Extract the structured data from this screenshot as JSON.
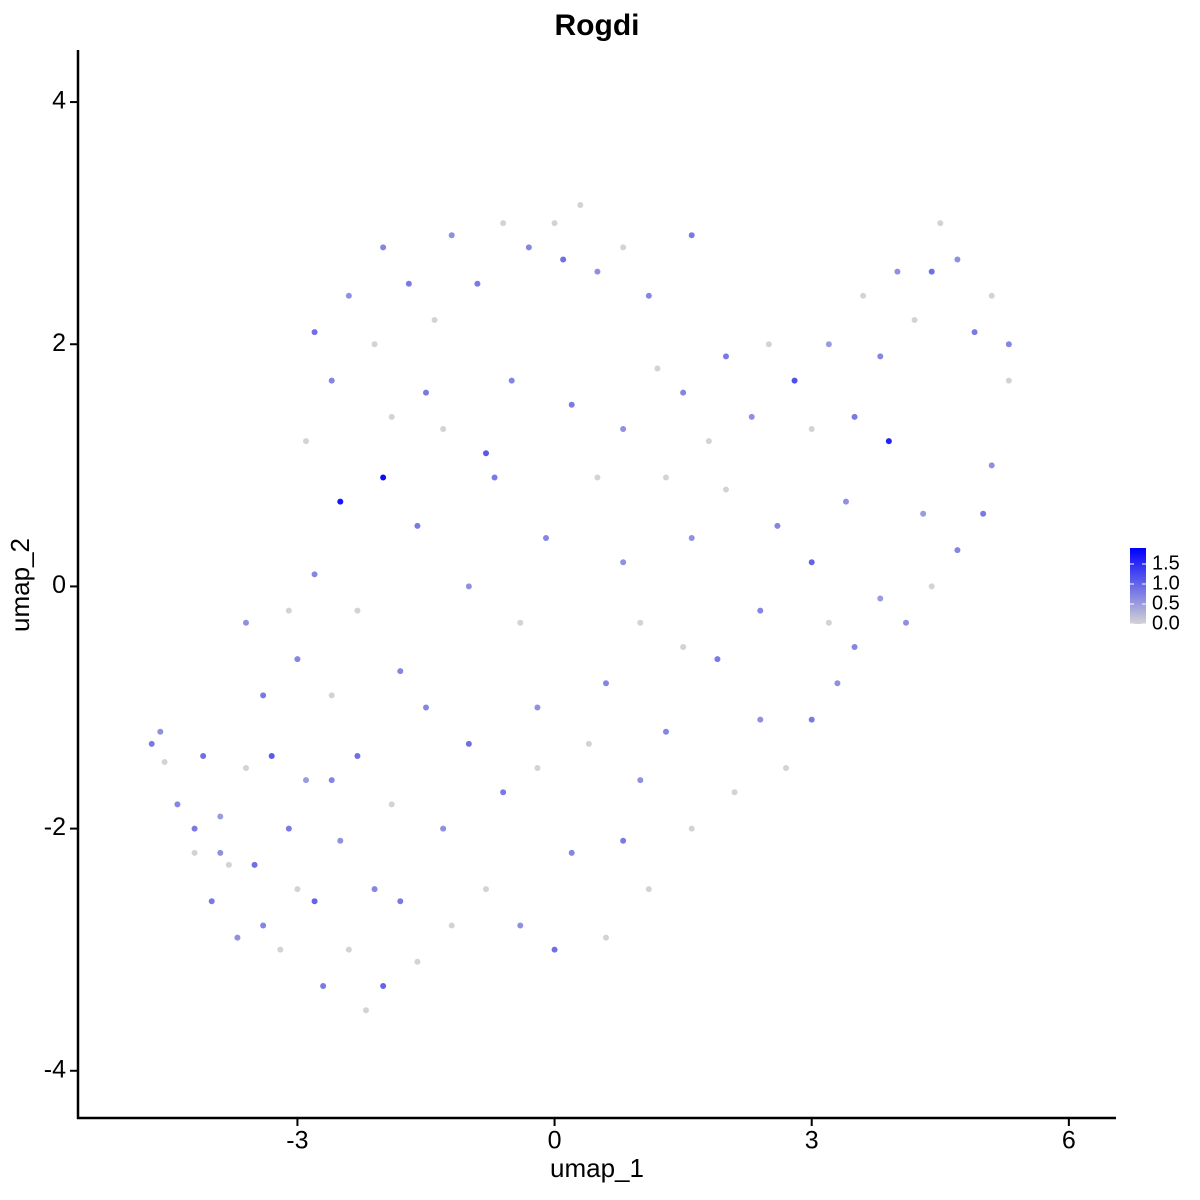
{
  "chart_data": {
    "type": "scatter",
    "title": "Rogdi",
    "x_label": "umap_1",
    "y_label": "umap_2",
    "xlim": [
      -5.56,
      6.55
    ],
    "ylim": [
      -4.39,
      4.43
    ],
    "xticks": [
      -3,
      0,
      3,
      6
    ],
    "yticks": [
      -4,
      -2,
      0,
      2,
      4
    ],
    "colors": [
      "#d3d3d3",
      "#0000ff"
    ],
    "color_range": [
      0,
      1.9
    ],
    "colorbar_ticks": [
      {
        "value": 0,
        "label": "0.0"
      },
      0.5,
      {
        "value": 1,
        "label": "1.0"
      },
      1.5
    ],
    "x": [
      -4.7,
      -4.6,
      -4.55,
      -4.4,
      -4.2,
      -4.1,
      -4.0,
      -3.9,
      -3.8,
      -3.7,
      -3.6,
      -3.5,
      -3.4,
      -3.3,
      -3.2,
      -3.1,
      -3.0,
      -2.9,
      -2.8,
      -2.7,
      -2.6,
      -2.5,
      -2.4,
      -2.3,
      -2.2,
      -2.1,
      -2.0,
      -1.9,
      -1.8,
      -1.6,
      -1.5,
      -1.3,
      -1.2,
      -1.0,
      -0.8,
      -0.6,
      -0.4,
      -0.2,
      0.0,
      0.2,
      0.4,
      0.6,
      0.8,
      1.0,
      1.1,
      1.3,
      1.6,
      1.9,
      2.1,
      2.4,
      2.7,
      3.0,
      3.3,
      3.5,
      3.8,
      4.1,
      4.4,
      4.7,
      5.0,
      5.1,
      5.3,
      5.3,
      5.1,
      4.9,
      4.7,
      4.5,
      4.4,
      4.2,
      4.0,
      3.8,
      3.6,
      3.5,
      3.2,
      3.0,
      2.8,
      2.5,
      2.3,
      2.0,
      1.8,
      1.5,
      1.3,
      1.6,
      2.0,
      2.6,
      3.0,
      3.4,
      3.9,
      4.3,
      3.2,
      2.4,
      1.5,
      0.8,
      0.5,
      0.2,
      -0.1,
      -0.4,
      -0.7,
      -1.0,
      -1.3,
      -1.6,
      -2.0,
      -2.3,
      -2.5,
      -2.8,
      -3.1,
      -3.4,
      -3.6,
      -2.9,
      -2.6,
      -2.8,
      -2.4,
      -2.1,
      -2.0,
      -1.7,
      -1.4,
      -1.2,
      -0.9,
      -0.6,
      -0.3,
      0.0,
      0.1,
      0.3,
      0.5,
      0.8,
      1.1,
      1.6,
      1.2,
      0.8,
      -0.5,
      -0.8,
      -1.5,
      -1.9,
      -0.2,
      0.6,
      1.0,
      -1.8,
      -3.9,
      -4.2,
      -3.0,
      -2.6
    ],
    "values": [
      -1.3,
      -1.2,
      -1.45,
      -1.8,
      -2.2,
      -1.4,
      -2.6,
      -1.9,
      -2.3,
      -2.9,
      -1.5,
      -2.3,
      -2.8,
      -1.4,
      -3.0,
      -2.0,
      -0.6,
      -1.6,
      -2.6,
      -3.3,
      -0.9,
      -2.1,
      -3.0,
      -1.4,
      -3.5,
      -2.5,
      -3.3,
      -1.8,
      -2.6,
      -3.1,
      -1.0,
      -2.0,
      -2.8,
      -1.3,
      -2.5,
      -1.7,
      -2.8,
      -1.5,
      -3.0,
      -2.2,
      -1.3,
      -2.9,
      -2.1,
      -1.6,
      -2.5,
      -1.2,
      -2.0,
      -0.6,
      -1.7,
      -1.1,
      -1.5,
      -1.1,
      -0.8,
      -0.5,
      -0.1,
      -0.3,
      0.0,
      0.3,
      0.6,
      1.0,
      1.7,
      2.0,
      2.4,
      2.1,
      2.7,
      3.0,
      2.6,
      2.2,
      2.6,
      1.9,
      2.4,
      1.4,
      2.0,
      1.3,
      1.7,
      2.0,
      1.4,
      1.9,
      1.2,
      1.6,
      0.9,
      0.4,
      0.8,
      0.5,
      0.2,
      0.7,
      1.2,
      0.6,
      -0.3,
      -0.2,
      -0.5,
      0.2,
      0.9,
      1.5,
      0.4,
      -0.3,
      0.9,
      0.0,
      1.3,
      0.5,
      0.9,
      -0.2,
      0.7,
      0.1,
      -0.2,
      -0.9,
      -0.3,
      1.2,
      1.7,
      2.1,
      2.4,
      2.0,
      2.8,
      2.5,
      2.2,
      2.9,
      2.5,
      3.0,
      2.8,
      3.0,
      2.7,
      3.15,
      2.6,
      2.8,
      2.4,
      2.9,
      1.8,
      1.3,
      1.7,
      1.1,
      1.6,
      1.4,
      -1.0,
      -0.8,
      -0.3,
      -0.7,
      -2.2,
      -2.0,
      -2.5,
      -1.6
    ],
    "color_values": [
      0.8,
      0.6,
      0,
      0.7,
      0,
      0.9,
      0.8,
      0.5,
      0,
      0.6,
      0,
      0.9,
      0.7,
      1.1,
      0,
      0.8,
      0.7,
      0.5,
      1.0,
      0.8,
      0,
      0.6,
      0,
      0.9,
      0,
      0.7,
      1.0,
      0,
      0.8,
      0,
      0.7,
      0.6,
      0,
      0.9,
      0,
      0.8,
      0.6,
      0,
      0.9,
      0.7,
      0,
      0,
      0.8,
      0.6,
      0,
      0.7,
      0,
      0.8,
      0,
      0.6,
      0,
      0.8,
      0.6,
      0.7,
      0.5,
      0.6,
      0,
      0.7,
      0.8,
      0.6,
      0,
      0.7,
      0,
      0.8,
      0.6,
      0,
      0.9,
      0,
      0.6,
      0.7,
      0,
      0.8,
      0.5,
      0,
      1.2,
      0,
      0.6,
      0.8,
      0,
      0.7,
      0,
      0.6,
      0,
      0.7,
      1.0,
      0.6,
      1.6,
      0.5,
      0,
      0.7,
      0,
      0.6,
      0,
      0.8,
      0.7,
      0,
      0.8,
      0.6,
      0,
      0.8,
      1.8,
      0,
      1.7,
      0.7,
      0,
      0.8,
      0.6,
      0,
      0.7,
      0.9,
      0.6,
      0,
      0.7,
      0.8,
      0,
      0.6,
      0.8,
      0,
      0.7,
      0,
      0.9,
      0,
      0.6,
      0,
      0.7,
      0.8,
      0,
      0.6,
      0.7,
      1.1,
      0.8,
      0,
      0.6,
      0.7,
      0,
      0.7,
      0.6,
      0.8,
      0,
      0.7
    ]
  }
}
